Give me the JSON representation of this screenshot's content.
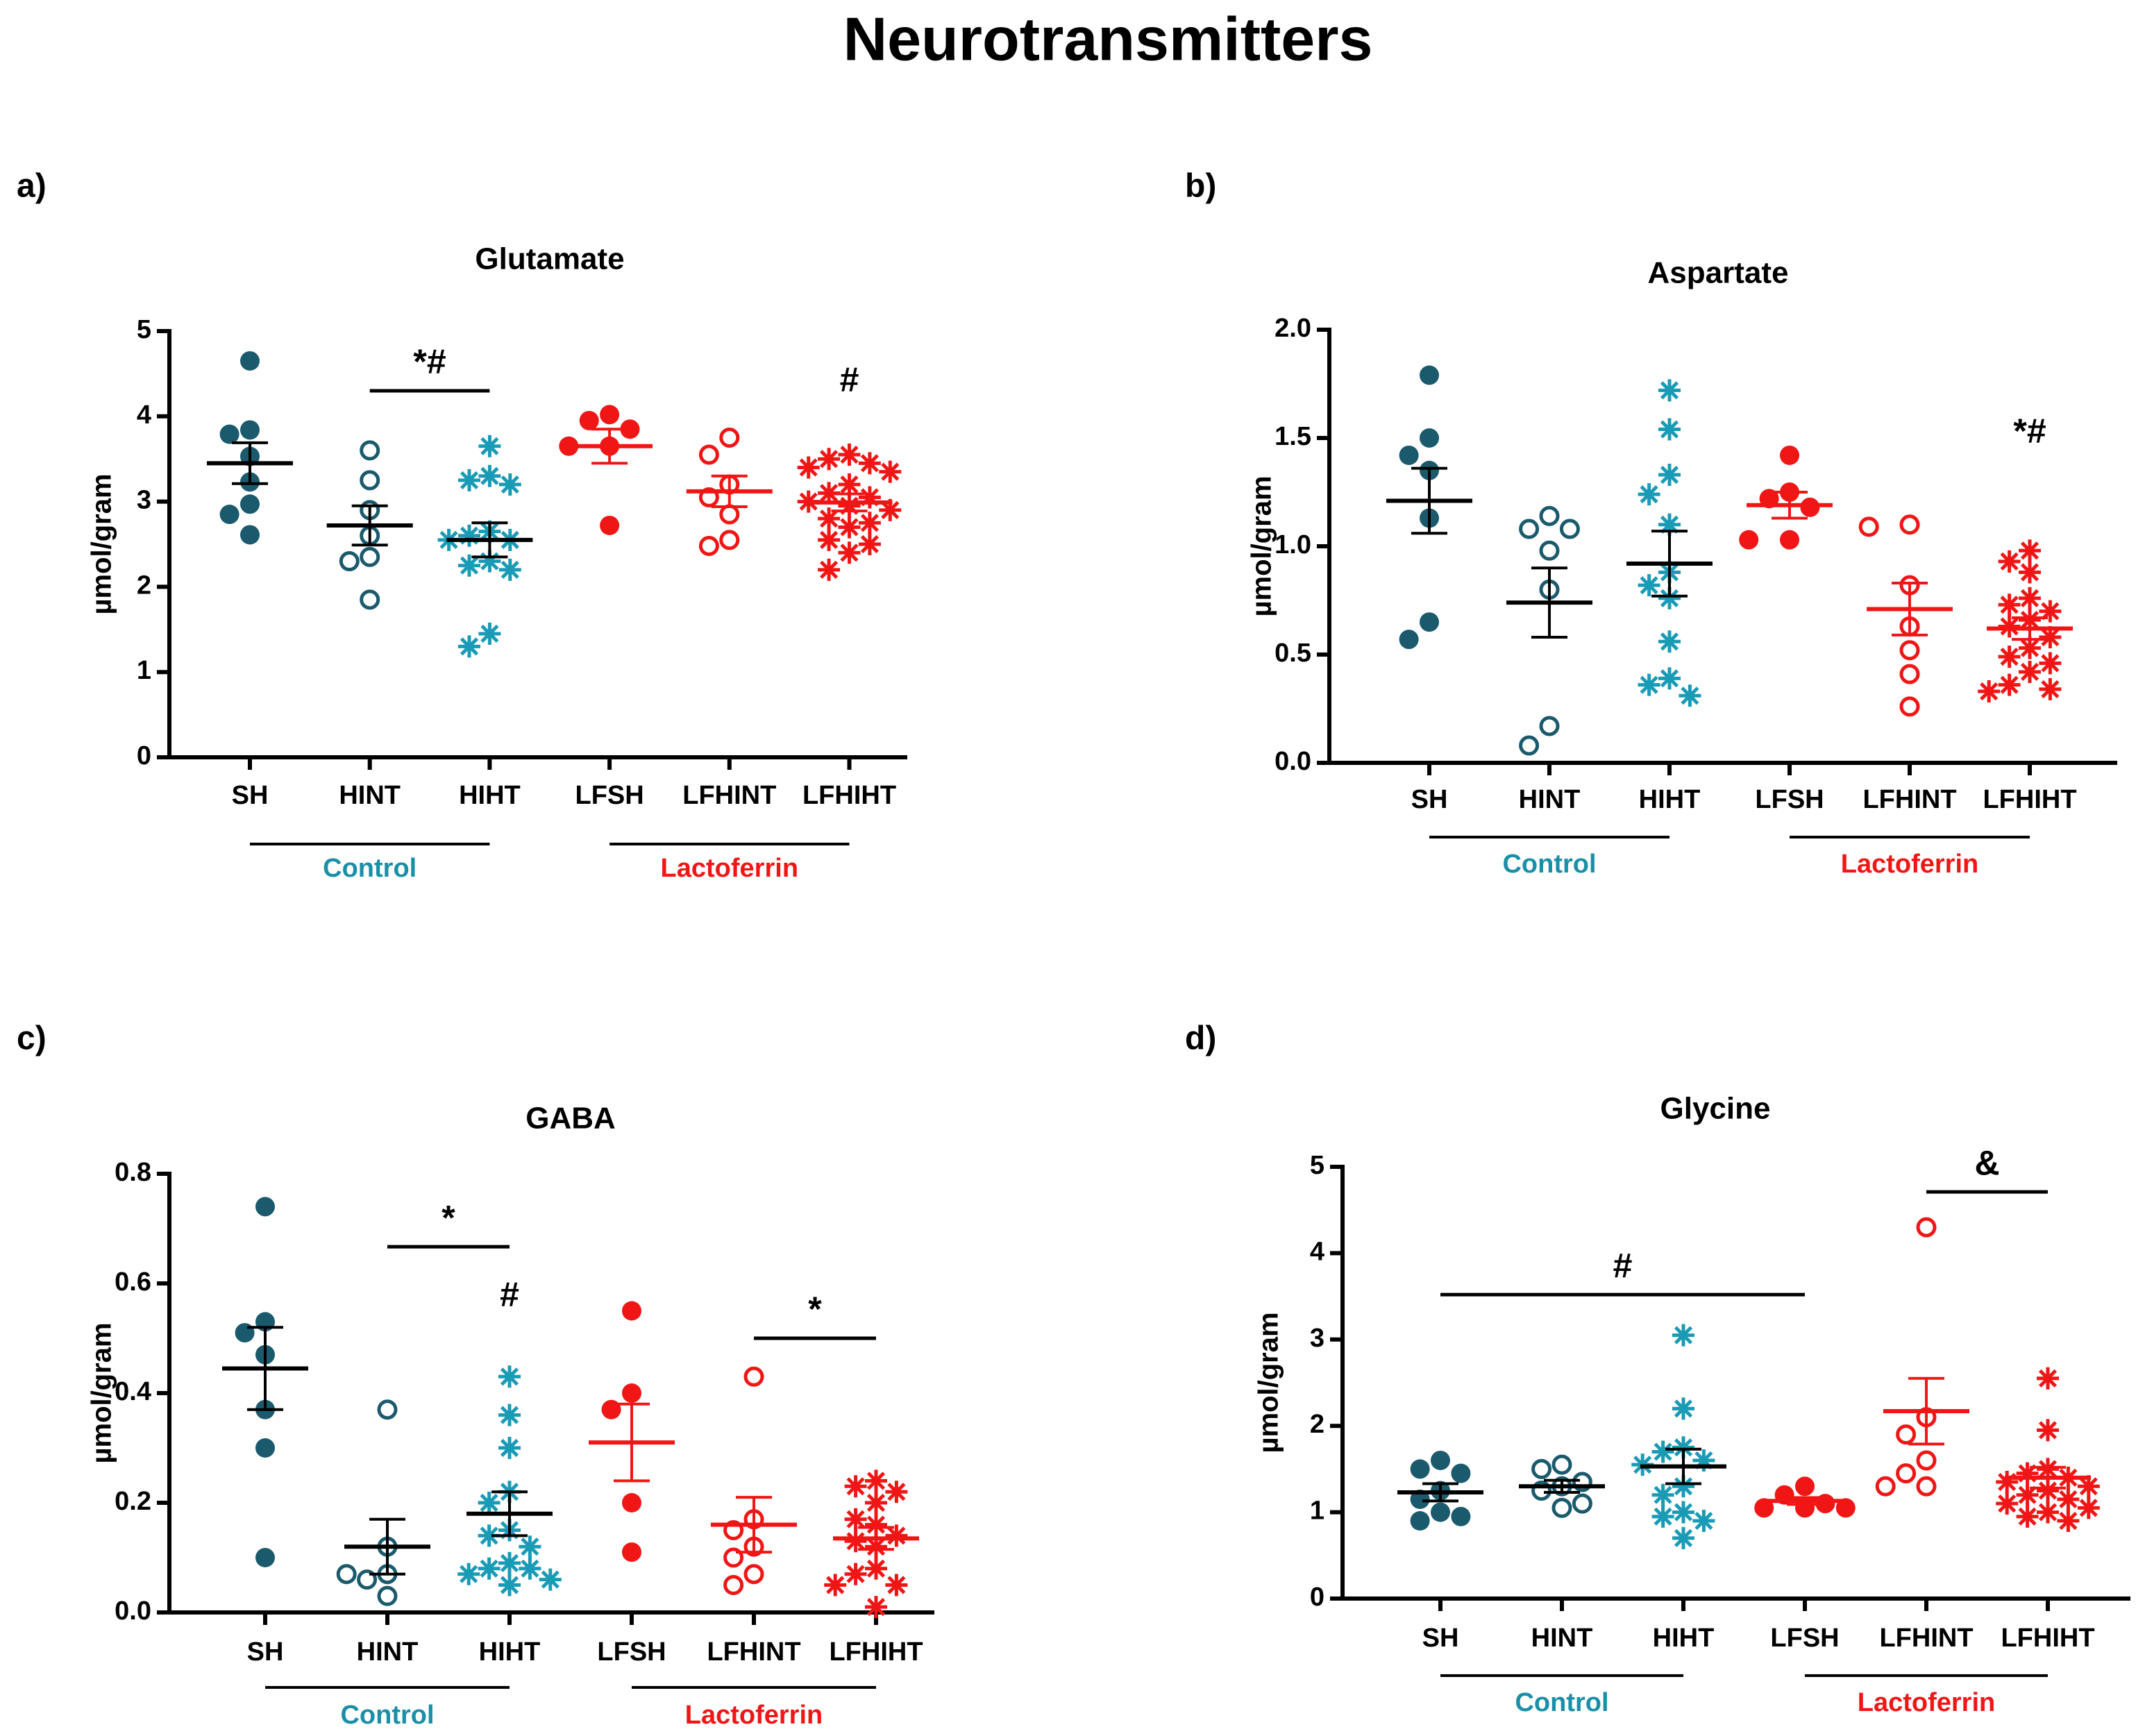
{
  "title": "Neurotransmitters",
  "chart_data": [
    {
      "type": "dot",
      "panel": "a)",
      "title": "Glutamate",
      "ylabel": "µmol/gram",
      "categories": [
        "SH",
        "HINT",
        "HIHT",
        "LFSH",
        "LFHINT",
        "LFHIHT"
      ],
      "colors": [
        "#1b5a6c",
        "#1b5a6c",
        "#1a9bb5",
        "#f01616",
        "#f01616",
        "#f01616"
      ],
      "markers": [
        "filled",
        "open",
        "asterisk",
        "filled",
        "open",
        "asterisk"
      ],
      "bar_colors": [
        "#000000",
        "#000000",
        "#000000",
        "#f01616",
        "#f01616",
        "#f01616"
      ],
      "points": [
        [
          4.65,
          3.84,
          3.79,
          3.53,
          3.23,
          2.97,
          2.85,
          2.61
        ],
        [
          3.6,
          3.25,
          2.9,
          2.6,
          2.35,
          2.3,
          1.85
        ],
        [
          3.65,
          3.3,
          3.25,
          3.2,
          2.65,
          2.6,
          2.55,
          2.55,
          2.3,
          2.25,
          2.2,
          1.45,
          1.3
        ],
        [
          4.02,
          3.95,
          3.85,
          3.65,
          3.65,
          2.72
        ],
        [
          3.75,
          3.55,
          3.2,
          3.05,
          2.85,
          2.55,
          2.48
        ],
        [
          3.55,
          3.5,
          3.45,
          3.4,
          3.35,
          3.2,
          3.1,
          3.05,
          3.0,
          2.95,
          2.9,
          2.8,
          2.75,
          2.7,
          2.55,
          2.5,
          2.4,
          2.2
        ]
      ],
      "means": [
        3.45,
        2.72,
        2.55,
        3.65,
        3.12,
        2.99
      ],
      "sems": [
        0.24,
        0.23,
        0.2,
        0.2,
        0.18,
        0.1
      ],
      "groups": [
        {
          "label": "Control",
          "color": "#1a8fa8"
        },
        {
          "label": "Lactoferrin",
          "color": "#f01616"
        }
      ],
      "annotations": [
        "*#",
        "#"
      ],
      "ylim": [
        0,
        5
      ],
      "yticks": [
        0,
        1,
        2,
        3,
        4,
        5
      ]
    },
    {
      "type": "dot",
      "panel": "b)",
      "title": "Aspartate",
      "ylabel": "µmol/gram",
      "categories": [
        "SH",
        "HINT",
        "HIHT",
        "LFSH",
        "LFHINT",
        "LFHIHT"
      ],
      "colors": [
        "#1b5a6c",
        "#1b5a6c",
        "#1a9bb5",
        "#f01616",
        "#f01616",
        "#f01616"
      ],
      "markers": [
        "filled",
        "open",
        "asterisk",
        "filled",
        "open",
        "asterisk"
      ],
      "bar_colors": [
        "#000000",
        "#000000",
        "#000000",
        "#f01616",
        "#f01616",
        "#f01616"
      ],
      "points": [
        [
          1.79,
          1.5,
          1.42,
          1.35,
          1.13,
          0.65,
          0.57
        ],
        [
          1.14,
          1.08,
          1.08,
          0.98,
          0.8,
          0.17,
          0.08
        ],
        [
          1.72,
          1.54,
          1.33,
          1.24,
          1.1,
          0.88,
          0.82,
          0.76,
          0.56,
          0.39,
          0.36,
          0.31
        ],
        [
          1.42,
          1.25,
          1.22,
          1.18,
          1.03,
          1.03
        ],
        [
          1.1,
          1.09,
          0.82,
          0.63,
          0.52,
          0.41,
          0.26
        ],
        [
          0.98,
          0.93,
          0.88,
          0.76,
          0.73,
          0.7,
          0.66,
          0.63,
          0.58,
          0.53,
          0.49,
          0.46,
          0.42,
          0.36,
          0.34,
          0.33
        ]
      ],
      "means": [
        1.21,
        0.74,
        0.92,
        1.19,
        0.71,
        0.62
      ],
      "sems": [
        0.15,
        0.16,
        0.15,
        0.06,
        0.12,
        0.05
      ],
      "groups": [
        {
          "label": "Control",
          "color": "#1a8fa8"
        },
        {
          "label": "Lactoferrin",
          "color": "#f01616"
        }
      ],
      "annotations": [
        "*#"
      ],
      "ylim": [
        0,
        2
      ],
      "yticks": [
        {
          "value": 0,
          "label": "0.0"
        },
        0.5,
        {
          "value": 1,
          "label": "1.0"
        },
        1.5,
        {
          "value": 2,
          "label": "2.0"
        }
      ]
    },
    {
      "type": "dot",
      "panel": "c)",
      "title": "GABA",
      "ylabel": "µmol/gram",
      "categories": [
        "SH",
        "HINT",
        "HIHT",
        "LFSH",
        "LFHINT",
        "LFHIHT"
      ],
      "colors": [
        "#1b5a6c",
        "#1b5a6c",
        "#1a9bb5",
        "#f01616",
        "#f01616",
        "#f01616"
      ],
      "markers": [
        "filled",
        "open",
        "asterisk",
        "filled",
        "open",
        "asterisk"
      ],
      "bar_colors": [
        "#000000",
        "#000000",
        "#000000",
        "#f01616",
        "#f01616",
        "#f01616"
      ],
      "points": [
        [
          0.74,
          0.53,
          0.51,
          0.47,
          0.37,
          0.3,
          0.1
        ],
        [
          0.37,
          0.12,
          0.07,
          0.07,
          0.06,
          0.03
        ],
        [
          0.43,
          0.36,
          0.3,
          0.22,
          0.2,
          0.15,
          0.14,
          0.12,
          0.09,
          0.08,
          0.08,
          0.07,
          0.06,
          0.05
        ],
        [
          0.55,
          0.4,
          0.37,
          0.2,
          0.11
        ],
        [
          0.43,
          0.17,
          0.15,
          0.12,
          0.1,
          0.07,
          0.05
        ],
        [
          0.24,
          0.23,
          0.22,
          0.2,
          0.17,
          0.16,
          0.14,
          0.13,
          0.12,
          0.08,
          0.07,
          0.05,
          0.05,
          0.01
        ]
      ],
      "means": [
        0.445,
        0.12,
        0.18,
        0.31,
        0.16,
        0.135
      ],
      "sems": [
        0.075,
        0.05,
        0.04,
        0.07,
        0.05,
        0.02
      ],
      "groups": [
        {
          "label": "Control",
          "color": "#1a8fa8"
        },
        {
          "label": "Lactoferrin",
          "color": "#f01616"
        }
      ],
      "annotations": [
        "*",
        "#",
        "*"
      ],
      "ylim": [
        0,
        0.8
      ],
      "yticks": [
        {
          "value": 0,
          "label": "0.0"
        },
        0.2,
        0.4,
        0.6,
        0.8
      ]
    },
    {
      "type": "dot",
      "panel": "d)",
      "title": "Glycine",
      "ylabel": "µmol/gram",
      "categories": [
        "SH",
        "HINT",
        "HIHT",
        "LFSH",
        "LFHINT",
        "LFHIHT"
      ],
      "colors": [
        "#1b5a6c",
        "#1b5a6c",
        "#1a9bb5",
        "#f01616",
        "#f01616",
        "#f01616"
      ],
      "markers": [
        "filled",
        "open",
        "asterisk",
        "filled",
        "open",
        "asterisk"
      ],
      "bar_colors": [
        "#000000",
        "#000000",
        "#000000",
        "#f01616",
        "#f01616",
        "#f01616"
      ],
      "points": [
        [
          1.6,
          1.5,
          1.45,
          1.25,
          1.15,
          1.0,
          0.95,
          0.9
        ],
        [
          1.55,
          1.5,
          1.35,
          1.3,
          1.25,
          1.1,
          1.05
        ],
        [
          3.05,
          2.2,
          1.75,
          1.7,
          1.6,
          1.55,
          1.3,
          1.2,
          1.0,
          0.95,
          0.9,
          0.7
        ],
        [
          1.3,
          1.2,
          1.1,
          1.05,
          1.05,
          1.05
        ],
        [
          4.3,
          2.1,
          1.9,
          1.6,
          1.45,
          1.3,
          1.3
        ],
        [
          2.55,
          1.95,
          1.5,
          1.45,
          1.4,
          1.35,
          1.3,
          1.25,
          1.2,
          1.15,
          1.1,
          1.05,
          1.0,
          0.95,
          0.9
        ]
      ],
      "means": [
        1.23,
        1.3,
        1.53,
        1.13,
        2.17,
        1.4
      ],
      "sems": [
        0.1,
        0.07,
        0.2,
        0.04,
        0.38,
        0.12
      ],
      "groups": [
        {
          "label": "Control",
          "color": "#1a8fa8"
        },
        {
          "label": "Lactoferrin",
          "color": "#f01616"
        }
      ],
      "annotations": [
        "#",
        "&"
      ],
      "ylim": [
        0,
        5
      ],
      "yticks": [
        0,
        1,
        2,
        3,
        4,
        5
      ]
    }
  ]
}
